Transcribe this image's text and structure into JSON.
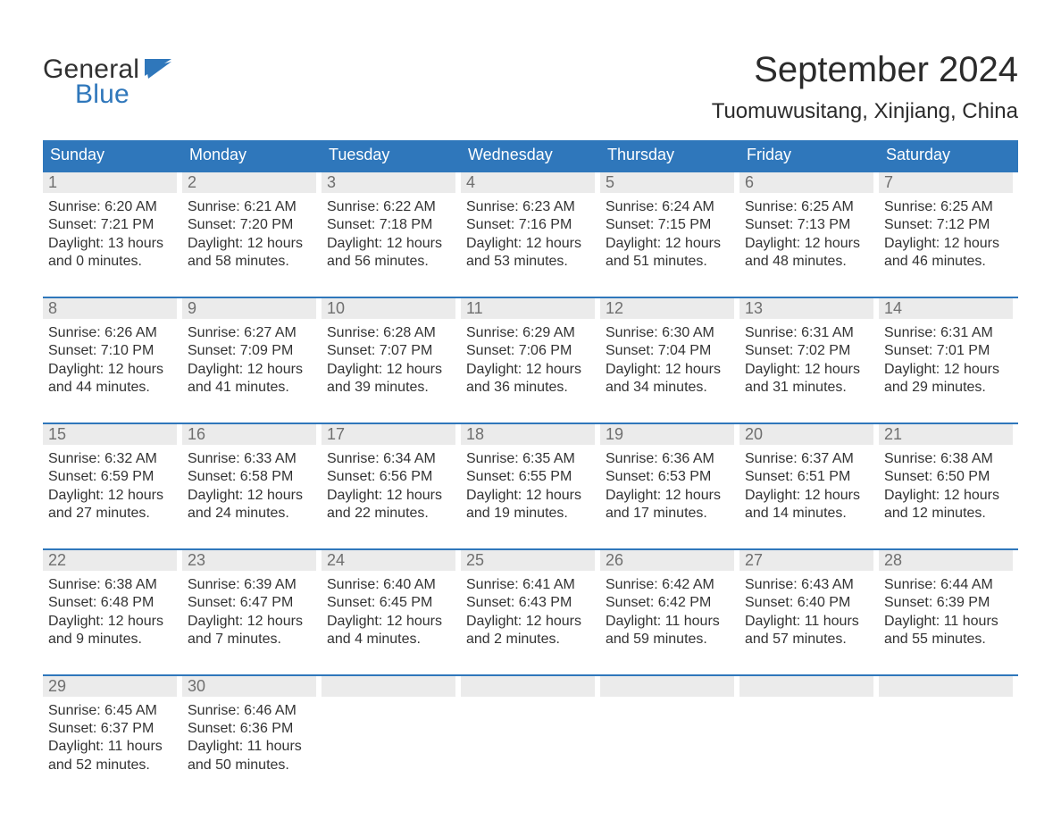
{
  "logo": {
    "line1": "General",
    "line2": "Blue"
  },
  "title": "September 2024",
  "location": "Tuomuwusitang, Xinjiang, China",
  "colors": {
    "header_blue": "#2f77bb",
    "daynum_bg": "#ebebeb",
    "daynum_text": "#6f6f6f",
    "body_text": "#333333",
    "background": "#ffffff"
  },
  "weekdays": [
    "Sunday",
    "Monday",
    "Tuesday",
    "Wednesday",
    "Thursday",
    "Friday",
    "Saturday"
  ],
  "weeks": [
    [
      {
        "n": 1,
        "sunrise": "6:20 AM",
        "sunset": "7:21 PM",
        "h": 13,
        "m": 0
      },
      {
        "n": 2,
        "sunrise": "6:21 AM",
        "sunset": "7:20 PM",
        "h": 12,
        "m": 58
      },
      {
        "n": 3,
        "sunrise": "6:22 AM",
        "sunset": "7:18 PM",
        "h": 12,
        "m": 56
      },
      {
        "n": 4,
        "sunrise": "6:23 AM",
        "sunset": "7:16 PM",
        "h": 12,
        "m": 53
      },
      {
        "n": 5,
        "sunrise": "6:24 AM",
        "sunset": "7:15 PM",
        "h": 12,
        "m": 51
      },
      {
        "n": 6,
        "sunrise": "6:25 AM",
        "sunset": "7:13 PM",
        "h": 12,
        "m": 48
      },
      {
        "n": 7,
        "sunrise": "6:25 AM",
        "sunset": "7:12 PM",
        "h": 12,
        "m": 46
      }
    ],
    [
      {
        "n": 8,
        "sunrise": "6:26 AM",
        "sunset": "7:10 PM",
        "h": 12,
        "m": 44
      },
      {
        "n": 9,
        "sunrise": "6:27 AM",
        "sunset": "7:09 PM",
        "h": 12,
        "m": 41
      },
      {
        "n": 10,
        "sunrise": "6:28 AM",
        "sunset": "7:07 PM",
        "h": 12,
        "m": 39
      },
      {
        "n": 11,
        "sunrise": "6:29 AM",
        "sunset": "7:06 PM",
        "h": 12,
        "m": 36
      },
      {
        "n": 12,
        "sunrise": "6:30 AM",
        "sunset": "7:04 PM",
        "h": 12,
        "m": 34
      },
      {
        "n": 13,
        "sunrise": "6:31 AM",
        "sunset": "7:02 PM",
        "h": 12,
        "m": 31
      },
      {
        "n": 14,
        "sunrise": "6:31 AM",
        "sunset": "7:01 PM",
        "h": 12,
        "m": 29
      }
    ],
    [
      {
        "n": 15,
        "sunrise": "6:32 AM",
        "sunset": "6:59 PM",
        "h": 12,
        "m": 27
      },
      {
        "n": 16,
        "sunrise": "6:33 AM",
        "sunset": "6:58 PM",
        "h": 12,
        "m": 24
      },
      {
        "n": 17,
        "sunrise": "6:34 AM",
        "sunset": "6:56 PM",
        "h": 12,
        "m": 22
      },
      {
        "n": 18,
        "sunrise": "6:35 AM",
        "sunset": "6:55 PM",
        "h": 12,
        "m": 19
      },
      {
        "n": 19,
        "sunrise": "6:36 AM",
        "sunset": "6:53 PM",
        "h": 12,
        "m": 17
      },
      {
        "n": 20,
        "sunrise": "6:37 AM",
        "sunset": "6:51 PM",
        "h": 12,
        "m": 14
      },
      {
        "n": 21,
        "sunrise": "6:38 AM",
        "sunset": "6:50 PM",
        "h": 12,
        "m": 12
      }
    ],
    [
      {
        "n": 22,
        "sunrise": "6:38 AM",
        "sunset": "6:48 PM",
        "h": 12,
        "m": 9
      },
      {
        "n": 23,
        "sunrise": "6:39 AM",
        "sunset": "6:47 PM",
        "h": 12,
        "m": 7
      },
      {
        "n": 24,
        "sunrise": "6:40 AM",
        "sunset": "6:45 PM",
        "h": 12,
        "m": 4
      },
      {
        "n": 25,
        "sunrise": "6:41 AM",
        "sunset": "6:43 PM",
        "h": 12,
        "m": 2
      },
      {
        "n": 26,
        "sunrise": "6:42 AM",
        "sunset": "6:42 PM",
        "h": 11,
        "m": 59
      },
      {
        "n": 27,
        "sunrise": "6:43 AM",
        "sunset": "6:40 PM",
        "h": 11,
        "m": 57
      },
      {
        "n": 28,
        "sunrise": "6:44 AM",
        "sunset": "6:39 PM",
        "h": 11,
        "m": 55
      }
    ],
    [
      {
        "n": 29,
        "sunrise": "6:45 AM",
        "sunset": "6:37 PM",
        "h": 11,
        "m": 52
      },
      {
        "n": 30,
        "sunrise": "6:46 AM",
        "sunset": "6:36 PM",
        "h": 11,
        "m": 50
      },
      null,
      null,
      null,
      null,
      null
    ]
  ],
  "labels": {
    "sunrise": "Sunrise",
    "sunset": "Sunset",
    "daylight": "Daylight",
    "hours": "hours",
    "and": "and",
    "minutes": "minutes"
  }
}
